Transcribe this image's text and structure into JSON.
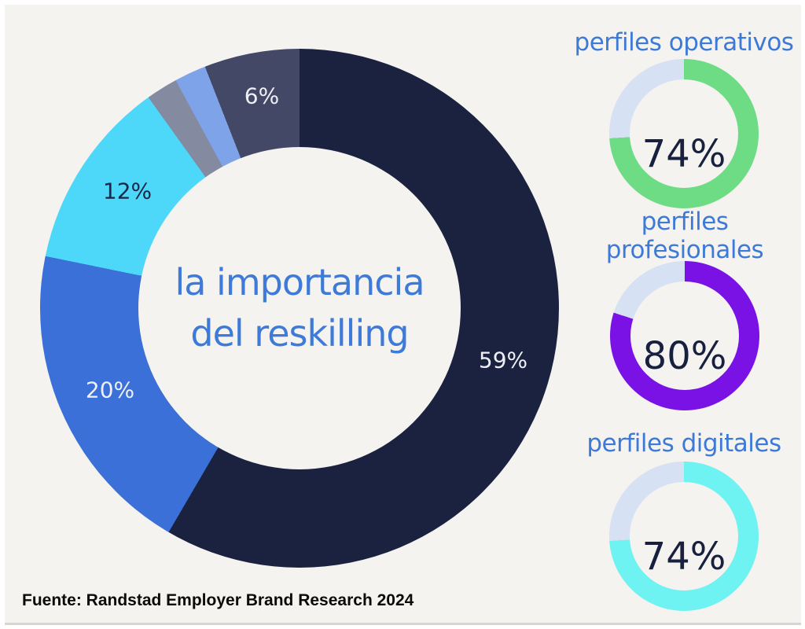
{
  "page": {
    "background": "#f5f3ef",
    "frame_color": "#ffffff",
    "accent_text_color": "#3d7ad7",
    "dark_text_color": "#17213f"
  },
  "footer": {
    "source_label": "Fuente: Randstad Employer Brand Research 2024"
  },
  "chart_data": [
    {
      "type": "pie",
      "subtype": "donut",
      "title": "la importancia del reskilling",
      "title_lines": {
        "line1": "la importancia",
        "line2": "del reskilling"
      },
      "legend_position": "none",
      "labels_shown_on_slices": true,
      "segments": [
        {
          "label": "59%",
          "value": 59,
          "color": "#1a2240",
          "label_color": "white"
        },
        {
          "label": "20%",
          "value": 20,
          "color": "#3b70d8",
          "label_color": "white"
        },
        {
          "label": "12%",
          "value": 12,
          "color": "#4dd7f8",
          "label_color": "dark-navy"
        },
        {
          "label": "",
          "value": 2,
          "color": "#848aa0",
          "label_color": "none"
        },
        {
          "label": "",
          "value": 2,
          "color": "#7ea3e8",
          "label_color": "none"
        },
        {
          "label": "6%",
          "value": 6,
          "color": "#424866",
          "label_color": "white"
        }
      ],
      "start_angle_deg": 0,
      "direction": "clockwise"
    },
    {
      "type": "pie",
      "subtype": "gauge-donut",
      "label": "perfiles operativos",
      "value": 74,
      "display": "74%",
      "color": "#6edc85",
      "track_color": "#d7e1f4",
      "start_angle_deg": 0,
      "direction": "clockwise"
    },
    {
      "type": "pie",
      "subtype": "gauge-donut",
      "label": "perfiles profesionales",
      "value": 80,
      "display": "80%",
      "color": "#7a12e6",
      "track_color": "#d7e1f4",
      "start_angle_deg": 0,
      "direction": "clockwise"
    },
    {
      "type": "pie",
      "subtype": "gauge-donut",
      "label": "perfiles digitales",
      "value": 74,
      "display": "74%",
      "color": "#6ff2f2",
      "track_color": "#d7e1f4",
      "start_angle_deg": 0,
      "direction": "clockwise"
    }
  ]
}
